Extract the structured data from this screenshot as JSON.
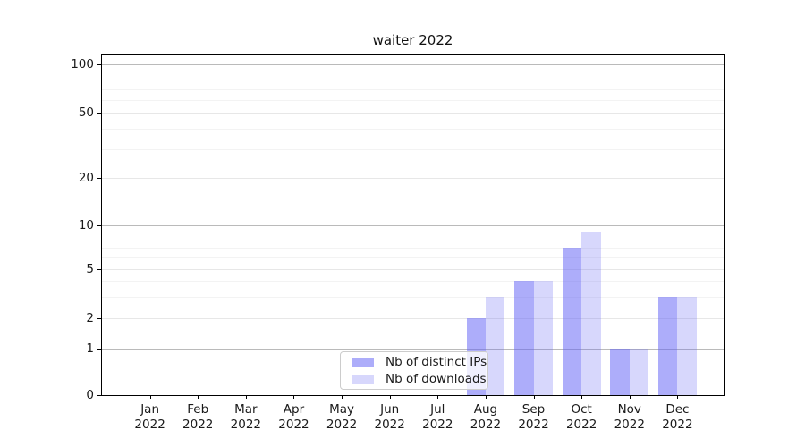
{
  "figure": {
    "background": "#ffffff",
    "title": "waiter 2022"
  },
  "chart_data": {
    "type": "bar",
    "title": "waiter 2022",
    "categories": [
      "Jan 2022",
      "Feb 2022",
      "Mar 2022",
      "Apr 2022",
      "May 2022",
      "Jun 2022",
      "Jul 2022",
      "Aug 2022",
      "Sep 2022",
      "Oct 2022",
      "Nov 2022",
      "Dec 2022"
    ],
    "series": [
      {
        "name": "Nb of distinct IPs",
        "color": "rgba(100,100,245,0.53)",
        "values": [
          0,
          0,
          0,
          0,
          0,
          0,
          0,
          2,
          4,
          7,
          1,
          3
        ]
      },
      {
        "name": "Nb of downloads",
        "color": "rgba(100,100,245,0.26)",
        "values": [
          0,
          0,
          0,
          0,
          0,
          0,
          0,
          3,
          4,
          9,
          1,
          3
        ]
      }
    ],
    "xlabel": "",
    "ylabel": "",
    "yscale": "symlog",
    "ylim": [
      0,
      115
    ],
    "y_ticks": [
      0,
      1,
      2,
      5,
      10,
      20,
      50,
      100
    ],
    "y_minor_ticks": [
      3,
      4,
      6,
      7,
      8,
      9,
      30,
      40,
      60,
      70,
      80,
      90
    ],
    "grid": true,
    "legend_position": "inside-bottom-center"
  },
  "legend": {
    "items": [
      {
        "label": "Nb of distinct IPs",
        "color": "rgba(100,100,245,0.53)"
      },
      {
        "label": "Nb of downloads",
        "color": "rgba(100,100,245,0.26)"
      }
    ]
  },
  "colors": {
    "power_gridline": "#bababa",
    "major_gridline": "#e7e7e7",
    "minor_gridline": "#f3f3f3",
    "axis_spine": "#000000",
    "tick_text": "#1a1a1a",
    "title_text": "#111111"
  }
}
